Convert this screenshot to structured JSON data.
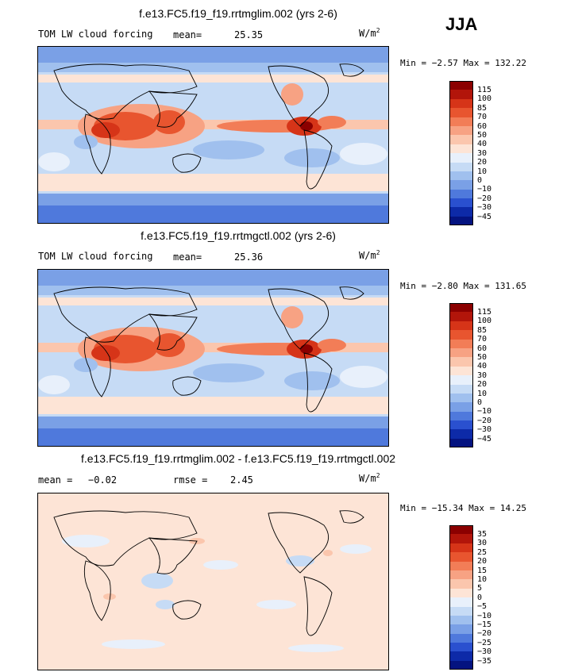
{
  "season": "JJA",
  "units_base": "W/m",
  "units_exp": "2",
  "panels": [
    {
      "title": "f.e13.FC5.f19_f19.rrtmglim.002 (yrs 2-6)",
      "left_text": "TOM LW cloud forcing",
      "stat_label": "mean=",
      "stat_value": "25.35",
      "minmax": "Min = −2.57 Max = 132.22",
      "levels": [
        "115",
        "100",
        "85",
        "70",
        "60",
        "50",
        "40",
        "30",
        "20",
        "10",
        "0",
        "−10",
        "−20",
        "−30",
        "−45"
      ],
      "colors": [
        "#8b0000",
        "#b2150a",
        "#d63418",
        "#e8552f",
        "#f27d57",
        "#f7a283",
        "#fbc6ad",
        "#fde4d6",
        "#e8f0fb",
        "#c6dbf5",
        "#a0c0ee",
        "#7aa0e6",
        "#4f79dc",
        "#2a50cf",
        "#0d2aa8",
        "#041380"
      ]
    },
    {
      "title": "f.e13.FC5.f19_f19.rrtmgctl.002 (yrs 2-6)",
      "left_text": "TOM LW cloud forcing",
      "stat_label": "mean=",
      "stat_value": "25.36",
      "minmax": "Min = −2.80 Max = 131.65",
      "levels": [
        "115",
        "100",
        "85",
        "70",
        "60",
        "50",
        "40",
        "30",
        "20",
        "10",
        "0",
        "−10",
        "−20",
        "−30",
        "−45"
      ],
      "colors": [
        "#8b0000",
        "#b2150a",
        "#d63418",
        "#e8552f",
        "#f27d57",
        "#f7a283",
        "#fbc6ad",
        "#fde4d6",
        "#e8f0fb",
        "#c6dbf5",
        "#a0c0ee",
        "#7aa0e6",
        "#4f79dc",
        "#2a50cf",
        "#0d2aa8",
        "#041380"
      ]
    },
    {
      "title": "f.e13.FC5.f19_f19.rrtmglim.002 - f.e13.FC5.f19_f19.rrtmgctl.002",
      "left_text": "mean =",
      "left_value": "−0.02",
      "stat_label": "rmse =",
      "stat_value": "2.45",
      "minmax": "Min = −15.34 Max =  14.25",
      "levels": [
        "35",
        "30",
        "25",
        "20",
        "15",
        "10",
        "5",
        "0",
        "−5",
        "−10",
        "−15",
        "−20",
        "−25",
        "−30",
        "−35"
      ],
      "colors": [
        "#8b0000",
        "#b2150a",
        "#d63418",
        "#e8552f",
        "#f27d57",
        "#f7a283",
        "#fbc6ad",
        "#fde4d6",
        "#e8f0fb",
        "#c6dbf5",
        "#a0c0ee",
        "#7aa0e6",
        "#4f79dc",
        "#2a50cf",
        "#0d2aa8",
        "#041380"
      ]
    }
  ]
}
